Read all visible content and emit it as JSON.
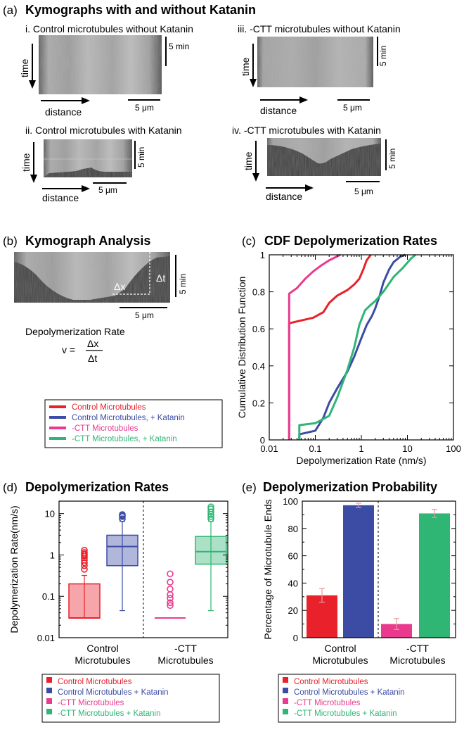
{
  "panel_a": {
    "letter": "(a)",
    "title": "Kymographs with and without Katanin",
    "kymographs": [
      {
        "label": "i. Control microtubules without Katanin"
      },
      {
        "label": "iii. -CTT microtubules without Katanin"
      },
      {
        "label": "ii. Control microtubules with Katanin"
      },
      {
        "label": "iv. -CTT microtubules with Katanin"
      }
    ],
    "time_label": "time",
    "distance_label": "distance",
    "time_scale": "5 min",
    "distance_scale": "5 μm"
  },
  "panel_b": {
    "letter": "(b)",
    "title": "Kymograph Analysis",
    "dt_label": "Δt",
    "dx_label": "Δx",
    "time_scale": "5 min",
    "distance_scale": "5 μm",
    "formula_title": "Depolymerization Rate",
    "formula_lhs": "v =",
    "formula_num": "Δx",
    "formula_den": "Δt"
  },
  "legend_bc": [
    {
      "name": "Control Microtubules",
      "color": "#e8212b"
    },
    {
      "name": "Control Microtubules, + Katanin",
      "color": "#3c4ca5"
    },
    {
      "name": "-CTT Microtubules",
      "color": "#ea3a8e"
    },
    {
      "name": "-CTT Microtubules, + Katanin",
      "color": "#2fb574"
    }
  ],
  "panel_c": {
    "letter": "(c)",
    "chart_data": {
      "type": "line",
      "title": "CDF Depolymerization Rates",
      "xlabel": "Depolymerization Rate (nm/s)",
      "ylabel": "Cumulative Distribution Function",
      "xscale": "log",
      "xlim": [
        0.01,
        100
      ],
      "ylim": [
        0,
        1
      ],
      "xticks": [
        "0.01",
        "0.1",
        "1",
        "10",
        "100"
      ],
      "yticks": [
        "0",
        "0.2",
        "0.4",
        "0.6",
        "0.8",
        "1"
      ],
      "series": [
        {
          "name": "Control Microtubules",
          "color": "#e8212b",
          "points": [
            [
              0.027,
              0
            ],
            [
              0.027,
              0.63
            ],
            [
              0.04,
              0.64
            ],
            [
              0.09,
              0.66
            ],
            [
              0.15,
              0.69
            ],
            [
              0.2,
              0.74
            ],
            [
              0.3,
              0.78
            ],
            [
              0.5,
              0.81
            ],
            [
              0.7,
              0.84
            ],
            [
              0.9,
              0.87
            ],
            [
              1.1,
              0.92
            ],
            [
              1.3,
              0.97
            ],
            [
              1.6,
              1.0
            ]
          ]
        },
        {
          "name": "Control Microtubules, + Katanin",
          "color": "#3c4ca5",
          "points": [
            [
              0.045,
              0
            ],
            [
              0.045,
              0.03
            ],
            [
              0.1,
              0.05
            ],
            [
              0.15,
              0.12
            ],
            [
              0.2,
              0.2
            ],
            [
              0.3,
              0.28
            ],
            [
              0.5,
              0.37
            ],
            [
              0.7,
              0.45
            ],
            [
              1.0,
              0.55
            ],
            [
              1.3,
              0.62
            ],
            [
              1.7,
              0.67
            ],
            [
              2.0,
              0.71
            ],
            [
              2.5,
              0.78
            ],
            [
              3.0,
              0.85
            ],
            [
              4.0,
              0.92
            ],
            [
              5.0,
              0.96
            ],
            [
              7.0,
              0.99
            ],
            [
              9.0,
              1.0
            ]
          ]
        },
        {
          "name": "-CTT Microtubules",
          "color": "#ea3a8e",
          "points": [
            [
              0.027,
              0
            ],
            [
              0.027,
              0.79
            ],
            [
              0.04,
              0.82
            ],
            [
              0.06,
              0.87
            ],
            [
              0.09,
              0.91
            ],
            [
              0.13,
              0.94
            ],
            [
              0.2,
              0.97
            ],
            [
              0.35,
              1.0
            ]
          ]
        },
        {
          "name": "-CTT Microtubules, + Katanin",
          "color": "#2fb574",
          "points": [
            [
              0.045,
              0
            ],
            [
              0.045,
              0.08
            ],
            [
              0.1,
              0.09
            ],
            [
              0.2,
              0.13
            ],
            [
              0.3,
              0.23
            ],
            [
              0.5,
              0.38
            ],
            [
              0.7,
              0.5
            ],
            [
              0.9,
              0.62
            ],
            [
              1.2,
              0.7
            ],
            [
              1.6,
              0.73
            ],
            [
              2.0,
              0.75
            ],
            [
              3.0,
              0.8
            ],
            [
              5.0,
              0.88
            ],
            [
              8.0,
              0.93
            ],
            [
              12.0,
              0.98
            ],
            [
              15.0,
              1.0
            ]
          ]
        }
      ]
    }
  },
  "panel_d": {
    "letter": "(d)",
    "chart_data": {
      "type": "box",
      "title": "Depolymerization Rates",
      "ylabel": "Depolymerization Rate(nm/s)",
      "yscale": "log",
      "ylim": [
        0.01,
        20
      ],
      "yticks": [
        "0.01",
        "0.1",
        "1",
        "10"
      ],
      "groups": [
        "Control Microtubules",
        "-CTT Microtubules"
      ],
      "boxes": [
        {
          "name": "Control Microtubules",
          "color": "#e8212b",
          "q1": 0.03,
          "median": 0.03,
          "q3": 0.2,
          "whisker_low": 0.03,
          "whisker_high": 0.32,
          "outliers": [
            0.45,
            0.55,
            0.65,
            0.75,
            0.85,
            0.95,
            1.05,
            1.15,
            1.3
          ]
        },
        {
          "name": "Control Microtubules + Katanin",
          "color": "#3c4ca5",
          "q1": 0.55,
          "median": 1.6,
          "q3": 3.0,
          "whisker_low": 0.045,
          "whisker_high": 6.5,
          "outliers": [
            7.5,
            8.5,
            9.0,
            9.5
          ]
        },
        {
          "name": "-CTT Microtubules",
          "color": "#ea3a8e",
          "q1": 0.03,
          "median": 0.03,
          "q3": 0.03,
          "whisker_low": 0.03,
          "whisker_high": 0.03,
          "outliers": [
            0.06,
            0.07,
            0.09,
            0.11,
            0.15,
            0.22,
            0.35
          ]
        },
        {
          "name": "-CTT Microtubules + Katanin",
          "color": "#2fb574",
          "q1": 0.6,
          "median": 1.2,
          "q3": 2.8,
          "whisker_low": 0.045,
          "whisker_high": 6.5,
          "outliers": [
            7.5,
            8.5,
            9.5,
            11.0,
            13.0,
            14.5
          ]
        }
      ]
    }
  },
  "panel_e": {
    "letter": "(e)",
    "chart_data": {
      "type": "bar",
      "title": "Depolymerization Probability",
      "ylabel": "Percentage of Microtubule Ends",
      "ylim": [
        0,
        100
      ],
      "yticks": [
        "0",
        "20",
        "40",
        "60",
        "80",
        "100"
      ],
      "groups": [
        "Control Microtubules",
        "-CTT Microtubules"
      ],
      "bars": [
        {
          "name": "Control Microtubules",
          "color": "#e8212b",
          "value": 31,
          "error": 5
        },
        {
          "name": "Control Microtubules + Katanin",
          "color": "#3c4ca5",
          "value": 97,
          "error": 1.5
        },
        {
          "name": "-CTT Microtubules",
          "color": "#ea3a8e",
          "value": 10,
          "error": 4
        },
        {
          "name": "-CTT Microtubules + Katanin",
          "color": "#2fb574",
          "value": 91,
          "error": 3
        }
      ]
    }
  },
  "legend_de": [
    {
      "name": "Control Microtubules",
      "color": "#e8212b"
    },
    {
      "name": "Control Microtubules + Katanin",
      "color": "#3c4ca5"
    },
    {
      "name": "-CTT Microtubules",
      "color": "#ea3a8e"
    },
    {
      "name": "-CTT Microtubules + Katanin",
      "color": "#2fb574"
    }
  ]
}
